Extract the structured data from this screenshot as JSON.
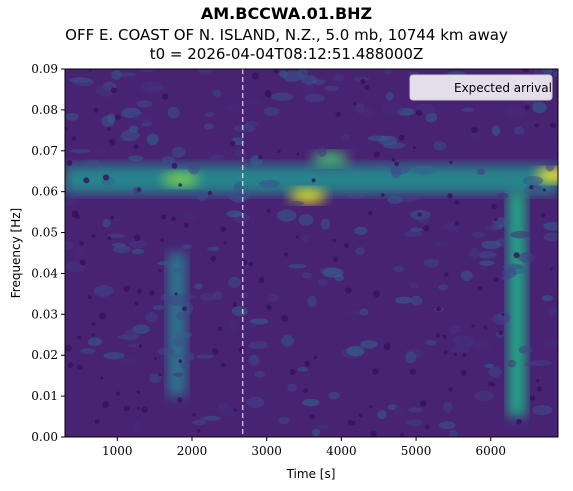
{
  "chart_data": {
    "type": "heatmap",
    "title": "AM.BCCWA.01.BHZ",
    "subtitle": "OFF E. COAST OF N. ISLAND, N.Z., 5.0 mb, 10744 km away",
    "subtitle2": "t0 = 2026-04-04T08:12:51.488000Z",
    "xlabel": "Time [s]",
    "ylabel": "Frequency [Hz]",
    "xlim": [
      300,
      6900
    ],
    "ylim": [
      0.0,
      0.09
    ],
    "xticks": [
      1000,
      2000,
      3000,
      4000,
      5000,
      6000
    ],
    "xtick_labels": [
      "1000",
      "2000",
      "3000",
      "4000",
      "5000",
      "6000"
    ],
    "yticks": [
      0.0,
      0.01,
      0.02,
      0.03,
      0.04,
      0.05,
      0.06,
      0.07,
      0.08,
      0.09
    ],
    "ytick_labels": [
      "0.00",
      "0.01",
      "0.02",
      "0.03",
      "0.04",
      "0.05",
      "0.06",
      "0.07",
      "0.08",
      "0.09"
    ],
    "colormap": "viridis",
    "expected_arrival": 2680,
    "legend": {
      "label": "Expected arrival",
      "placement": "top-right"
    },
    "features": [
      {
        "kind": "band",
        "x": [
          300,
          6900
        ],
        "y": 0.063,
        "intensity": 0.45
      },
      {
        "kind": "blob",
        "x": 3550,
        "y": 0.059,
        "intensity": 0.95
      },
      {
        "kind": "blob",
        "x": 6850,
        "y": 0.064,
        "intensity": 1.0
      },
      {
        "kind": "blob",
        "x": 1850,
        "y": 0.063,
        "intensity": 0.8
      },
      {
        "kind": "blob",
        "x": 3850,
        "y": 0.068,
        "intensity": 0.7
      },
      {
        "kind": "column",
        "x": 6350,
        "y": [
          0.005,
          0.06
        ],
        "intensity": 0.6
      },
      {
        "kind": "column",
        "x": 1800,
        "y": [
          0.01,
          0.045
        ],
        "intensity": 0.4
      }
    ]
  }
}
